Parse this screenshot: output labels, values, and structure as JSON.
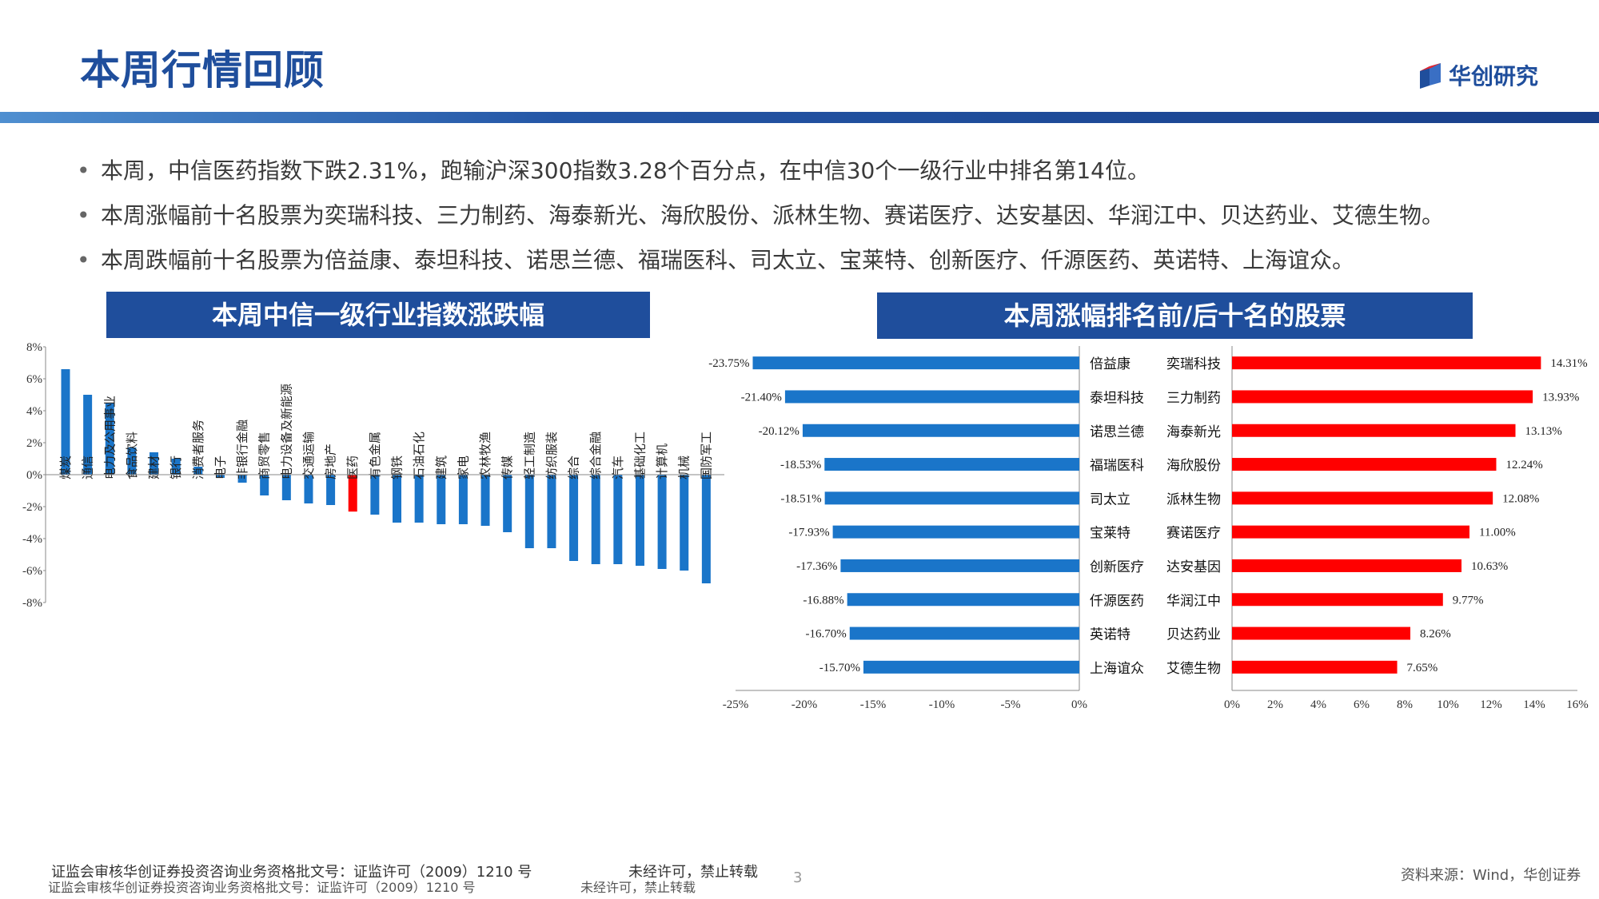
{
  "header": {
    "title": "本周行情回顾",
    "logo_text": "华创研究",
    "brand_color": "#1f4e9c"
  },
  "bullets": [
    "本周，中信医药指数下跌2.31%，跑输沪深300指数3.28个百分点，在中信30个一级行业中排名第14位。",
    "本周涨幅前十名股票为奕瑞科技、三力制药、海泰新光、海欣股份、派林生物、赛诺医疗、达安基因、华润江中、贝达药业、艾德生物。",
    "本周跌幅前十名股票为倍益康、泰坦科技、诺思兰德、福瑞医科、司太立、宝莱特、创新医疗、仟源医药、英诺特、上海谊众。"
  ],
  "panels": {
    "left_title": "本周中信一级行业指数涨跌幅",
    "right_title": "本周涨幅排名前/后十名的股票"
  },
  "footer": {
    "license": "证监会审核华创证券投资咨询业务资格批文号：证监许可（2009）1210 号",
    "notice": "未经许可，禁止转载",
    "page": "3",
    "source": "资料来源：Wind，华创证券"
  },
  "colors": {
    "bar_blue": "#1a75c9",
    "bar_red": "#ff0000",
    "axis": "#888888"
  },
  "chart_data": [
    {
      "type": "bar",
      "title": "本周中信一级行业指数涨跌幅",
      "ylim": [
        -8,
        8
      ],
      "yticks": [
        8,
        6,
        4,
        2,
        0,
        -2,
        -4,
        -6,
        -8
      ],
      "ytick_labels": [
        "8%",
        "6%",
        "4%",
        "2%",
        "0%",
        "-2%",
        "-4%",
        "-6%",
        "-8%"
      ],
      "highlight_category": "医药",
      "categories": [
        "煤炭",
        "通信",
        "电力及公用事业",
        "食品饮料",
        "建材",
        "银行",
        "消费者服务",
        "电子",
        "非银行金融",
        "商贸零售",
        "电力设备及新能源",
        "交通运输",
        "房地产",
        "医药",
        "有色金属",
        "钢铁",
        "石油石化",
        "建筑",
        "家电",
        "农林牧渔",
        "传媒",
        "轻工制造",
        "纺织服装",
        "综合",
        "综合金融",
        "汽车",
        "基础化工",
        "计算机",
        "机械",
        "国防军工"
      ],
      "values": [
        6.6,
        5.0,
        4.5,
        1.7,
        1.4,
        1.0,
        0.5,
        -0.2,
        -0.5,
        -1.3,
        -1.6,
        -1.8,
        -1.9,
        -2.31,
        -2.5,
        -3.0,
        -3.0,
        -3.1,
        -3.1,
        -3.2,
        -3.6,
        -4.6,
        -4.6,
        -5.4,
        -5.6,
        -5.6,
        -5.7,
        -5.9,
        -6.0,
        -6.8
      ]
    },
    {
      "type": "bar",
      "orientation": "horizontal",
      "title": "本周跌幅前十名",
      "xlim": [
        -25,
        0
      ],
      "xticks": [
        -25,
        -20,
        -15,
        -10,
        -5,
        0
      ],
      "xtick_labels": [
        "-25%",
        "-20%",
        "-15%",
        "-10%",
        "-5%",
        "0%"
      ],
      "categories": [
        "倍益康",
        "泰坦科技",
        "诺思兰德",
        "福瑞医科",
        "司太立",
        "宝莱特",
        "创新医疗",
        "仟源医药",
        "英诺特",
        "上海谊众"
      ],
      "values": [
        -23.75,
        -21.4,
        -20.12,
        -18.53,
        -18.51,
        -17.93,
        -17.36,
        -16.88,
        -16.7,
        -15.7
      ],
      "data_labels": [
        "-23.75%",
        "-21.40%",
        "-20.12%",
        "-18.53%",
        "-18.51%",
        "-17.93%",
        "-17.36%",
        "-16.88%",
        "-16.70%",
        "-15.70%"
      ]
    },
    {
      "type": "bar",
      "orientation": "horizontal",
      "title": "本周涨幅前十名",
      "xlim": [
        0,
        16
      ],
      "xticks": [
        0,
        2,
        4,
        6,
        8,
        10,
        12,
        14,
        16
      ],
      "xtick_labels": [
        "0%",
        "2%",
        "4%",
        "6%",
        "8%",
        "10%",
        "12%",
        "14%",
        "16%"
      ],
      "categories": [
        "奕瑞科技",
        "三力制药",
        "海泰新光",
        "海欣股份",
        "派林生物",
        "赛诺医疗",
        "达安基因",
        "华润江中",
        "贝达药业",
        "艾德生物"
      ],
      "values": [
        14.31,
        13.93,
        13.13,
        12.24,
        12.08,
        11.0,
        10.63,
        9.77,
        8.26,
        7.65
      ],
      "data_labels": [
        "14.31%",
        "13.93%",
        "13.13%",
        "12.24%",
        "12.08%",
        "11.00%",
        "10.63%",
        "9.77%",
        "8.26%",
        "7.65%"
      ]
    }
  ]
}
